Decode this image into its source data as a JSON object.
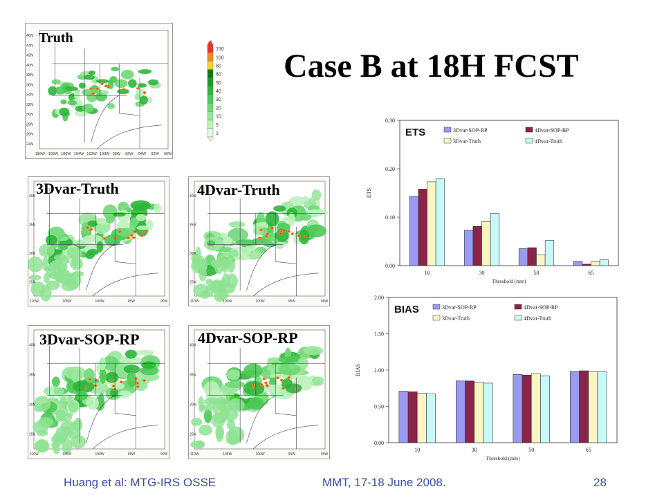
{
  "slide": {
    "title": "Case B at 18H FCST",
    "footer_left": "Huang et al: MTG-IRS OSSE",
    "footer_center": "MMT, 17-18 June 2008.",
    "page_number": "28"
  },
  "maps": {
    "truth": "Truth",
    "var3_truth": "3Dvar-Truth",
    "var4_truth": "4Dvar-Truth",
    "var3_sop": "3Dvar-SOP-RP",
    "var4_sop": "4Dvar-SOP-RP",
    "truth_lat_ticks": [
      "46N",
      "44N",
      "42N",
      "40N",
      "38N",
      "36N",
      "34N",
      "32N",
      "30N",
      "28N",
      "26N",
      "24N"
    ],
    "truth_lon_ticks": [
      "110W",
      "108W",
      "106W",
      "104W",
      "102W",
      "100W",
      "98W",
      "96W",
      "94W",
      "92W",
      "90W"
    ],
    "small_lat_ticks": [
      "40N",
      "35N",
      "30N",
      "25N"
    ],
    "small_lon_ticks": [
      "110W",
      "105W",
      "100W",
      "95W",
      "90W"
    ]
  },
  "colorbar": {
    "labels": [
      "150",
      "100",
      "80",
      "60",
      "50",
      "40",
      "30",
      "20",
      "10",
      "5",
      "1"
    ],
    "colors": [
      "#e8332a",
      "#f08a20",
      "#f5d130",
      "#0c7a18",
      "#1c9a28",
      "#2fb53a",
      "#4cc957",
      "#6fd876",
      "#96e69a",
      "#bdf2bd",
      "#e2fbe0"
    ]
  },
  "chart_data": [
    {
      "type": "bar",
      "label": "ETS",
      "ylabel": "ETS",
      "xlabel": "Threshold (mm)",
      "categories": [
        "10",
        "30",
        "50",
        "65"
      ],
      "ylim": [
        0,
        0.3
      ],
      "yticks": [
        "0.00",
        "0.10",
        "0.20",
        "0.30"
      ],
      "series": [
        {
          "name": "3Dvar-SOP-RP",
          "color": "#9a9af2",
          "values": [
            0.143,
            0.073,
            0.035,
            0.009
          ]
        },
        {
          "name": "4Dvar-SOP-RP",
          "color": "#8a2448",
          "values": [
            0.158,
            0.081,
            0.037,
            0.003
          ]
        },
        {
          "name": "3Dvar-Truth",
          "color": "#fbf5c4",
          "values": [
            0.173,
            0.091,
            0.022,
            0.008
          ]
        },
        {
          "name": "4Dvar-Truth",
          "color": "#c8f8f8",
          "values": [
            0.179,
            0.108,
            0.052,
            0.012
          ]
        }
      ]
    },
    {
      "type": "bar",
      "label": "BIAS",
      "ylabel": "BIAS",
      "xlabel": "Threshold (mm)",
      "categories": [
        "10",
        "30",
        "50",
        "65"
      ],
      "ylim": [
        0,
        2.0
      ],
      "yticks": [
        "0.00",
        "0.50",
        "1.00",
        "1.50",
        "2.00"
      ],
      "series": [
        {
          "name": "3Dvar-SOP-RP",
          "color": "#9a9af2",
          "values": [
            0.71,
            0.85,
            0.94,
            0.98
          ]
        },
        {
          "name": "4Dvar-SOP-RP",
          "color": "#8a2448",
          "values": [
            0.7,
            0.85,
            0.93,
            0.99
          ]
        },
        {
          "name": "3Dvar-Truth",
          "color": "#fbf5c4",
          "values": [
            0.68,
            0.83,
            0.95,
            0.98
          ]
        },
        {
          "name": "4Dvar-Truth",
          "color": "#c8f8f8",
          "values": [
            0.67,
            0.82,
            0.92,
            0.98
          ]
        }
      ]
    }
  ]
}
